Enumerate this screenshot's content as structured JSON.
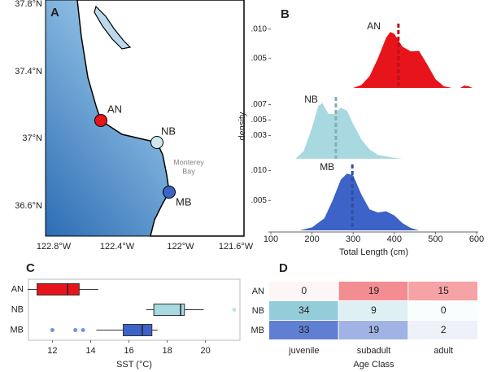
{
  "map": {
    "panel_label": "A",
    "lat_ticks": [
      "37.8°N",
      "37.4°N",
      "37°N",
      "36.6°N"
    ],
    "lon_ticks": [
      "122.8°W",
      "122.4°W",
      "122°W",
      "121.6°W"
    ],
    "sites": [
      {
        "label": "AN",
        "color": "#e8141c"
      },
      {
        "label": "NB",
        "color": "#cfe6ee"
      },
      {
        "label": "MB",
        "color": "#3d62c8"
      }
    ],
    "annotation": [
      "Monterey",
      "Bay"
    ]
  },
  "chart_data": [
    {
      "type": "density",
      "panel_label": "B",
      "label": "AN",
      "color": "#e8141c",
      "mean": 410,
      "x": [
        300,
        320,
        340,
        360,
        380,
        390,
        400,
        420,
        440,
        460,
        480,
        500,
        520,
        540,
        560,
        570,
        580,
        590
      ],
      "values": [
        0,
        0.0005,
        0.002,
        0.005,
        0.0085,
        0.0095,
        0.0092,
        0.007,
        0.0062,
        0.0063,
        0.004,
        0.0015,
        0.0003,
        0,
        0,
        0.0004,
        0.0003,
        0
      ],
      "xlim": [
        100,
        600
      ],
      "ylim": [
        0,
        0.0112
      ],
      "yticks": [
        {
          "value": 0.005,
          "label": ".005"
        },
        {
          "value": 0.01,
          "label": ".010"
        }
      ],
      "ylabel": "density"
    },
    {
      "type": "density",
      "label": "NB",
      "color": "#a8d8e0",
      "mean": 258,
      "x": [
        160,
        180,
        200,
        215,
        225,
        240,
        255,
        270,
        285,
        300,
        320,
        340,
        360,
        390,
        420
      ],
      "values": [
        0,
        0.001,
        0.004,
        0.0068,
        0.0072,
        0.0058,
        0.0058,
        0.0066,
        0.0062,
        0.0045,
        0.0025,
        0.0012,
        0.0005,
        0.0002,
        0
      ],
      "xlim": [
        100,
        600
      ],
      "ylim": [
        0,
        0.0082
      ],
      "yticks": [
        {
          "value": 0.003,
          "label": ".003"
        },
        {
          "value": 0.005,
          "label": ".005"
        },
        {
          "value": 0.007,
          "label": ".007"
        }
      ]
    },
    {
      "type": "density",
      "label": "MB",
      "color": "#3d62c8",
      "mean": 298,
      "x": [
        170,
        200,
        230,
        250,
        270,
        285,
        300,
        320,
        340,
        360,
        380,
        400,
        420,
        440,
        460
      ],
      "values": [
        0,
        0.0005,
        0.002,
        0.005,
        0.0085,
        0.0095,
        0.0092,
        0.006,
        0.0035,
        0.003,
        0.0032,
        0.0025,
        0.0012,
        0.0004,
        0
      ],
      "xlim": [
        100,
        600
      ],
      "ylim": [
        0,
        0.0113
      ],
      "yticks": [
        {
          "value": 0.005,
          "label": ".005"
        },
        {
          "value": 0.01,
          "label": ".010"
        }
      ],
      "xticks": [
        100,
        200,
        300,
        400,
        500,
        600
      ],
      "xlabel": "Total Length (cm)"
    },
    {
      "type": "box",
      "panel_label": "C",
      "categories": [
        "AN",
        "NB",
        "MB"
      ],
      "colors": [
        "#e8141c",
        "#a8d8e0",
        "#3d62c8"
      ],
      "boxes": [
        {
          "min": 10.7,
          "q1": 11.2,
          "median": 12.8,
          "q3": 13.4,
          "max": 14.4,
          "outliers": []
        },
        {
          "min": 16.9,
          "q1": 17.3,
          "median": 18.7,
          "q3": 18.9,
          "max": 19.9,
          "outliers": [
            21.5
          ]
        },
        {
          "min": 14.3,
          "q1": 15.7,
          "median": 16.7,
          "q3": 17.2,
          "max": 17.5,
          "outliers": [
            12,
            13.2,
            13.6
          ]
        }
      ],
      "xlim": [
        10.75,
        21.8
      ],
      "xticks": [
        12,
        14,
        16,
        18,
        20
      ],
      "xlabel": "SST (°C)"
    },
    {
      "type": "heatmap",
      "panel_label": "D",
      "rows": [
        "AN",
        "NB",
        "MB"
      ],
      "columns": [
        "juvenile",
        "subadult",
        "adult"
      ],
      "colors": [
        "#e8141c",
        "#7fc3d2",
        "#3d62c8"
      ],
      "values": [
        [
          0,
          19,
          15
        ],
        [
          34,
          9,
          0
        ],
        [
          33,
          19,
          2
        ]
      ],
      "xlabel": "Age Class"
    }
  ]
}
